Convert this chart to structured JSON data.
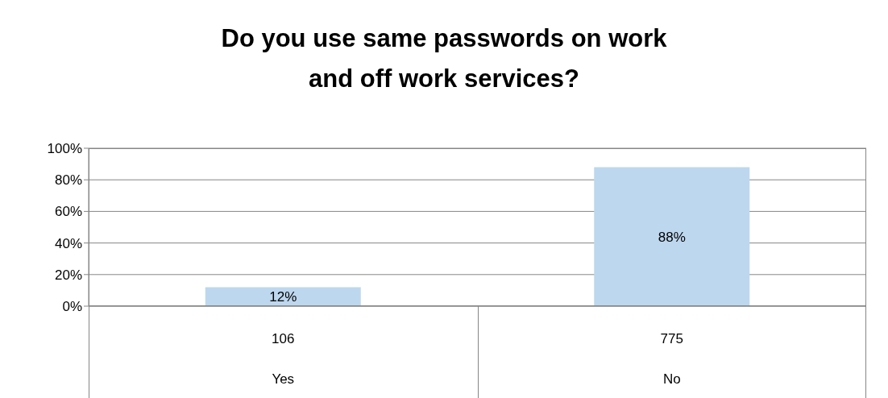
{
  "chart_data": {
    "type": "bar",
    "title": "Do you use same passwords on work and off work services?",
    "categories": [
      "Yes",
      "No"
    ],
    "values": [
      12,
      88
    ],
    "value_labels": [
      "12%",
      "88%"
    ],
    "color": "#bdd7ee",
    "ylim": [
      0,
      100
    ],
    "yticks": [
      {
        "value": 0,
        "label": "0%"
      },
      {
        "value": 20,
        "label": "20%"
      },
      {
        "value": 40,
        "label": "40%"
      },
      {
        "value": 60,
        "label": "60%"
      },
      {
        "value": 80,
        "label": "80%"
      },
      {
        "value": 100,
        "label": "100%"
      }
    ],
    "grid": "y",
    "annotations": [
      "106",
      "775"
    ]
  }
}
